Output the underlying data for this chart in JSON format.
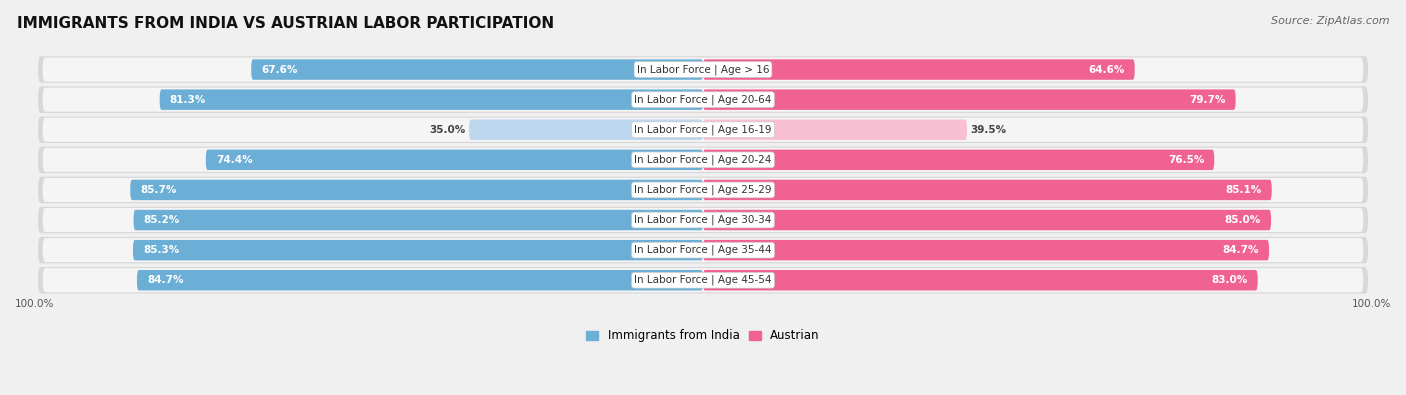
{
  "title": "IMMIGRANTS FROM INDIA VS AUSTRIAN LABOR PARTICIPATION",
  "source": "Source: ZipAtlas.com",
  "categories": [
    "In Labor Force | Age > 16",
    "In Labor Force | Age 20-64",
    "In Labor Force | Age 16-19",
    "In Labor Force | Age 20-24",
    "In Labor Force | Age 25-29",
    "In Labor Force | Age 30-34",
    "In Labor Force | Age 35-44",
    "In Labor Force | Age 45-54"
  ],
  "india_values": [
    67.6,
    81.3,
    35.0,
    74.4,
    85.7,
    85.2,
    85.3,
    84.7
  ],
  "austria_values": [
    64.6,
    79.7,
    39.5,
    76.5,
    85.1,
    85.0,
    84.7,
    83.0
  ],
  "india_color": "#6BAED6",
  "india_color_light": "#BDD7EE",
  "austria_color": "#F06292",
  "austria_color_light": "#F9C0D4",
  "background_color": "#f0f0f0",
  "row_bg_color": "#e8e8e8",
  "row_inner_color": "#f8f8f8",
  "title_fontsize": 11,
  "source_fontsize": 8,
  "bar_label_fontsize": 7.5,
  "category_fontsize": 7.5,
  "legend_fontsize": 8.5,
  "axis_label_fontsize": 7.5,
  "x_left_label": "100.0%",
  "x_right_label": "100.0%"
}
